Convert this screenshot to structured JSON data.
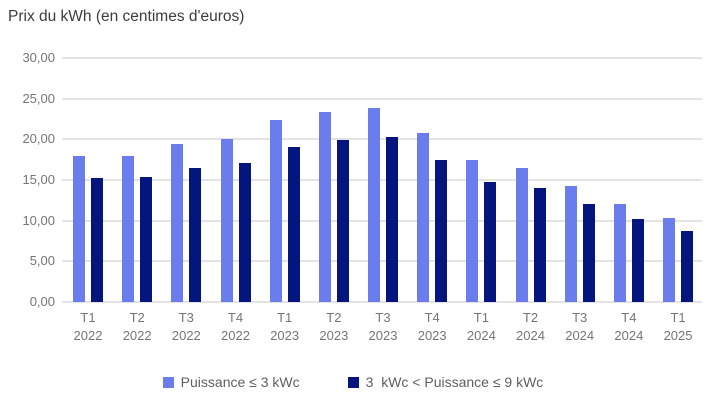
{
  "chart": {
    "title": "Prix du kWh (en centimes d'euros)",
    "colors": {
      "series1": "#6B7CEC",
      "series2": "#05157E",
      "grid": "#E3E3E3",
      "axis_text": "#757575",
      "title_text": "#3C3C3C",
      "background": "#FFFFFF"
    },
    "legend": [
      {
        "label": "Puissance ≤ 3 kWc",
        "swatch": "series1-swatch"
      },
      {
        "label": "3  kWc < Puissance ≤ 9 kWc",
        "swatch": "series2-swatch"
      }
    ]
  },
  "chart_data": {
    "type": "bar",
    "title": "Prix du kWh (en centimes d'euros)",
    "xlabel": "",
    "ylabel": "",
    "categories": [
      "T1 2022",
      "T2 2022",
      "T3 2022",
      "T4 2022",
      "T1 2023",
      "T2 2023",
      "T3 2023",
      "T4 2023",
      "T1 2024",
      "T2 2024",
      "T3 2024",
      "T4 2024",
      "T1 2025"
    ],
    "series": [
      {
        "name": "Puissance ≤ 3 kWc",
        "color": "#6B7CEC",
        "values": [
          17.9,
          18.0,
          19.4,
          20.1,
          22.4,
          23.4,
          23.9,
          20.8,
          17.4,
          16.5,
          14.3,
          12.0,
          10.3
        ]
      },
      {
        "name": "3  kWc < Puissance ≤ 9 kWc",
        "color": "#05157E",
        "values": [
          15.2,
          15.4,
          16.5,
          17.1,
          19.0,
          19.9,
          20.3,
          17.5,
          14.7,
          14.0,
          12.1,
          10.2,
          8.7
        ]
      }
    ],
    "ylim": [
      0,
      30
    ],
    "ytick_step": 5,
    "ytick_labels": [
      "0,00",
      "5,00",
      "10,00",
      "15,00",
      "20,00",
      "25,00",
      "30,00"
    ],
    "grid": true,
    "legend_position": "bottom"
  }
}
